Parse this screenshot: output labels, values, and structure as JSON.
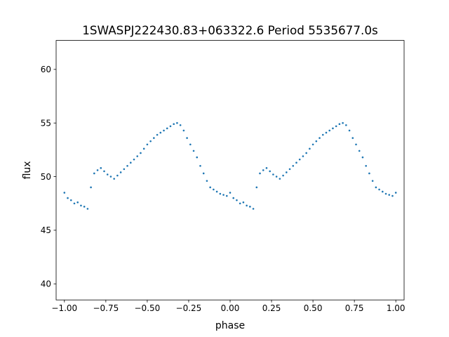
{
  "chart_data": {
    "type": "scatter",
    "title": "1SWASPJ222430.83+063322.6 Period 5535677.0s",
    "xlabel": "phase",
    "ylabel": "flux",
    "xlim": [
      -1.05,
      1.05
    ],
    "ylim": [
      38.5,
      62.7
    ],
    "x_ticks": [
      -1.0,
      -0.75,
      -0.5,
      -0.25,
      0.0,
      0.25,
      0.5,
      0.75,
      1.0
    ],
    "x_tick_labels": [
      "−1.00",
      "−0.75",
      "−0.50",
      "−0.25",
      "0.00",
      "0.25",
      "0.50",
      "0.75",
      "1.00"
    ],
    "y_ticks": [
      40,
      45,
      50,
      55,
      60
    ],
    "y_tick_labels": [
      "40",
      "45",
      "50",
      "55",
      "60"
    ],
    "grid": false,
    "legend": "none",
    "series": [
      {
        "color": "#1f77b4",
        "x": [
          -1.0,
          -0.98,
          -0.96,
          -0.94,
          -0.92,
          -0.9,
          -0.88,
          -0.86,
          -0.84,
          -0.82,
          -0.8,
          -0.78,
          -0.76,
          -0.74,
          -0.72,
          -0.7,
          -0.68,
          -0.66,
          -0.64,
          -0.62,
          -0.6,
          -0.58,
          -0.56,
          -0.54,
          -0.52,
          -0.5,
          -0.48,
          -0.46,
          -0.44,
          -0.42,
          -0.4,
          -0.38,
          -0.36,
          -0.34,
          -0.32,
          -0.3,
          -0.28,
          -0.26,
          -0.24,
          -0.22,
          -0.2,
          -0.18,
          -0.16,
          -0.14,
          -0.12,
          -0.1,
          -0.08,
          -0.06,
          -0.04,
          -0.02,
          0.0,
          0.02,
          0.04,
          0.06,
          0.08,
          0.1,
          0.12,
          0.14,
          0.16,
          0.18,
          0.2,
          0.22,
          0.24,
          0.26,
          0.28,
          0.3,
          0.32,
          0.34,
          0.36,
          0.38,
          0.4,
          0.42,
          0.44,
          0.46,
          0.48,
          0.5,
          0.52,
          0.54,
          0.56,
          0.58,
          0.6,
          0.62,
          0.64,
          0.66,
          0.68,
          0.7,
          0.72,
          0.74,
          0.76,
          0.78,
          0.8,
          0.82,
          0.84,
          0.86,
          0.88,
          0.9,
          0.92,
          0.94,
          0.96,
          0.98,
          1.0
        ],
        "y": [
          48.5,
          48.0,
          47.8,
          47.5,
          47.6,
          47.3,
          47.2,
          47.0,
          49.0,
          50.3,
          50.6,
          50.8,
          50.5,
          50.2,
          50.0,
          49.8,
          50.1,
          50.4,
          50.7,
          51.0,
          51.3,
          51.6,
          51.9,
          52.2,
          52.6,
          53.0,
          53.3,
          53.6,
          53.9,
          54.1,
          54.3,
          54.5,
          54.7,
          54.9,
          55.0,
          54.8,
          54.3,
          53.6,
          53.0,
          52.4,
          51.8,
          51.0,
          50.3,
          49.6,
          49.0,
          48.8,
          48.6,
          48.4,
          48.3,
          48.2,
          48.5,
          48.0,
          47.8,
          47.5,
          47.6,
          47.3,
          47.2,
          47.0,
          49.0,
          50.3,
          50.6,
          50.8,
          50.5,
          50.2,
          50.0,
          49.8,
          50.1,
          50.4,
          50.7,
          51.0,
          51.3,
          51.6,
          51.9,
          52.2,
          52.6,
          53.0,
          53.3,
          53.6,
          53.9,
          54.1,
          54.3,
          54.5,
          54.7,
          54.9,
          55.0,
          54.8,
          54.3,
          53.6,
          53.0,
          52.4,
          51.8,
          51.0,
          50.3,
          49.6,
          49.0,
          48.8,
          48.6,
          48.4,
          48.3,
          48.2,
          48.5
        ]
      }
    ]
  }
}
